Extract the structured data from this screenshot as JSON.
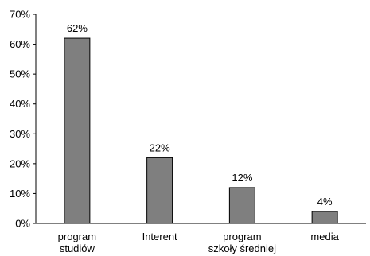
{
  "chart_data": {
    "type": "bar",
    "categories": [
      [
        "program",
        "studiów"
      ],
      [
        "Interent"
      ],
      [
        "program",
        "szkoły średniej"
      ],
      [
        "media"
      ]
    ],
    "values": [
      62,
      22,
      12,
      4
    ],
    "data_labels": [
      "62%",
      "22%",
      "12%",
      "4%"
    ],
    "yticks": [
      "0%",
      "10%",
      "20%",
      "30%",
      "40%",
      "50%",
      "60%",
      "70%"
    ],
    "ylim": [
      0,
      70
    ],
    "ytick_step": 10,
    "grid": false,
    "legend": "none",
    "colors": {
      "bar": "#7f7f7f",
      "bar_stroke": "#000000",
      "axis": "#000000"
    }
  }
}
